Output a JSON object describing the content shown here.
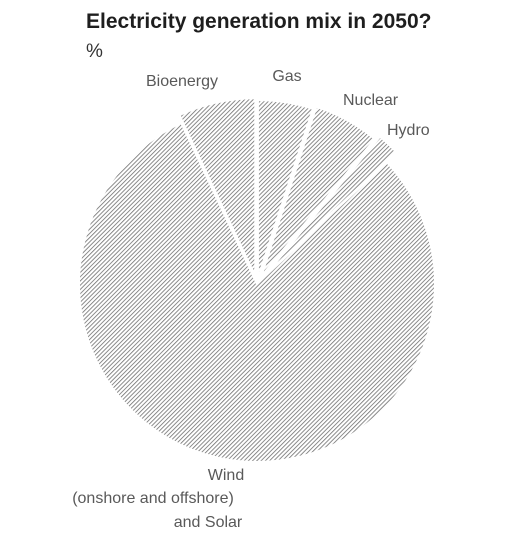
{
  "chart_data": {
    "type": "pie",
    "title": "Electricity generation mix in 2050?",
    "subtitle": "%",
    "slices": [
      {
        "label": "Gas",
        "value": 5
      },
      {
        "label": "Nuclear",
        "value": 6
      },
      {
        "label": "Hydro",
        "value": 2
      },
      {
        "label": "Wind (onshore and offshore) and Solar",
        "label_lines": [
          "Wind",
          "(onshore and offshore)",
          "and Solar"
        ],
        "value": 80
      },
      {
        "label": "Bioenergy",
        "value": 7
      }
    ],
    "start": "12 o'clock, clockwise",
    "exploded": [
      "Gas",
      "Nuclear",
      "Hydro",
      "Bioenergy"
    ],
    "fill_pattern": "diagonal hatch",
    "colors": {
      "hatch": "#6e6e6e",
      "background": "#ffffff",
      "label": "#595959",
      "title": "#1e1e1e"
    },
    "legend": "none (labels on slices)"
  }
}
